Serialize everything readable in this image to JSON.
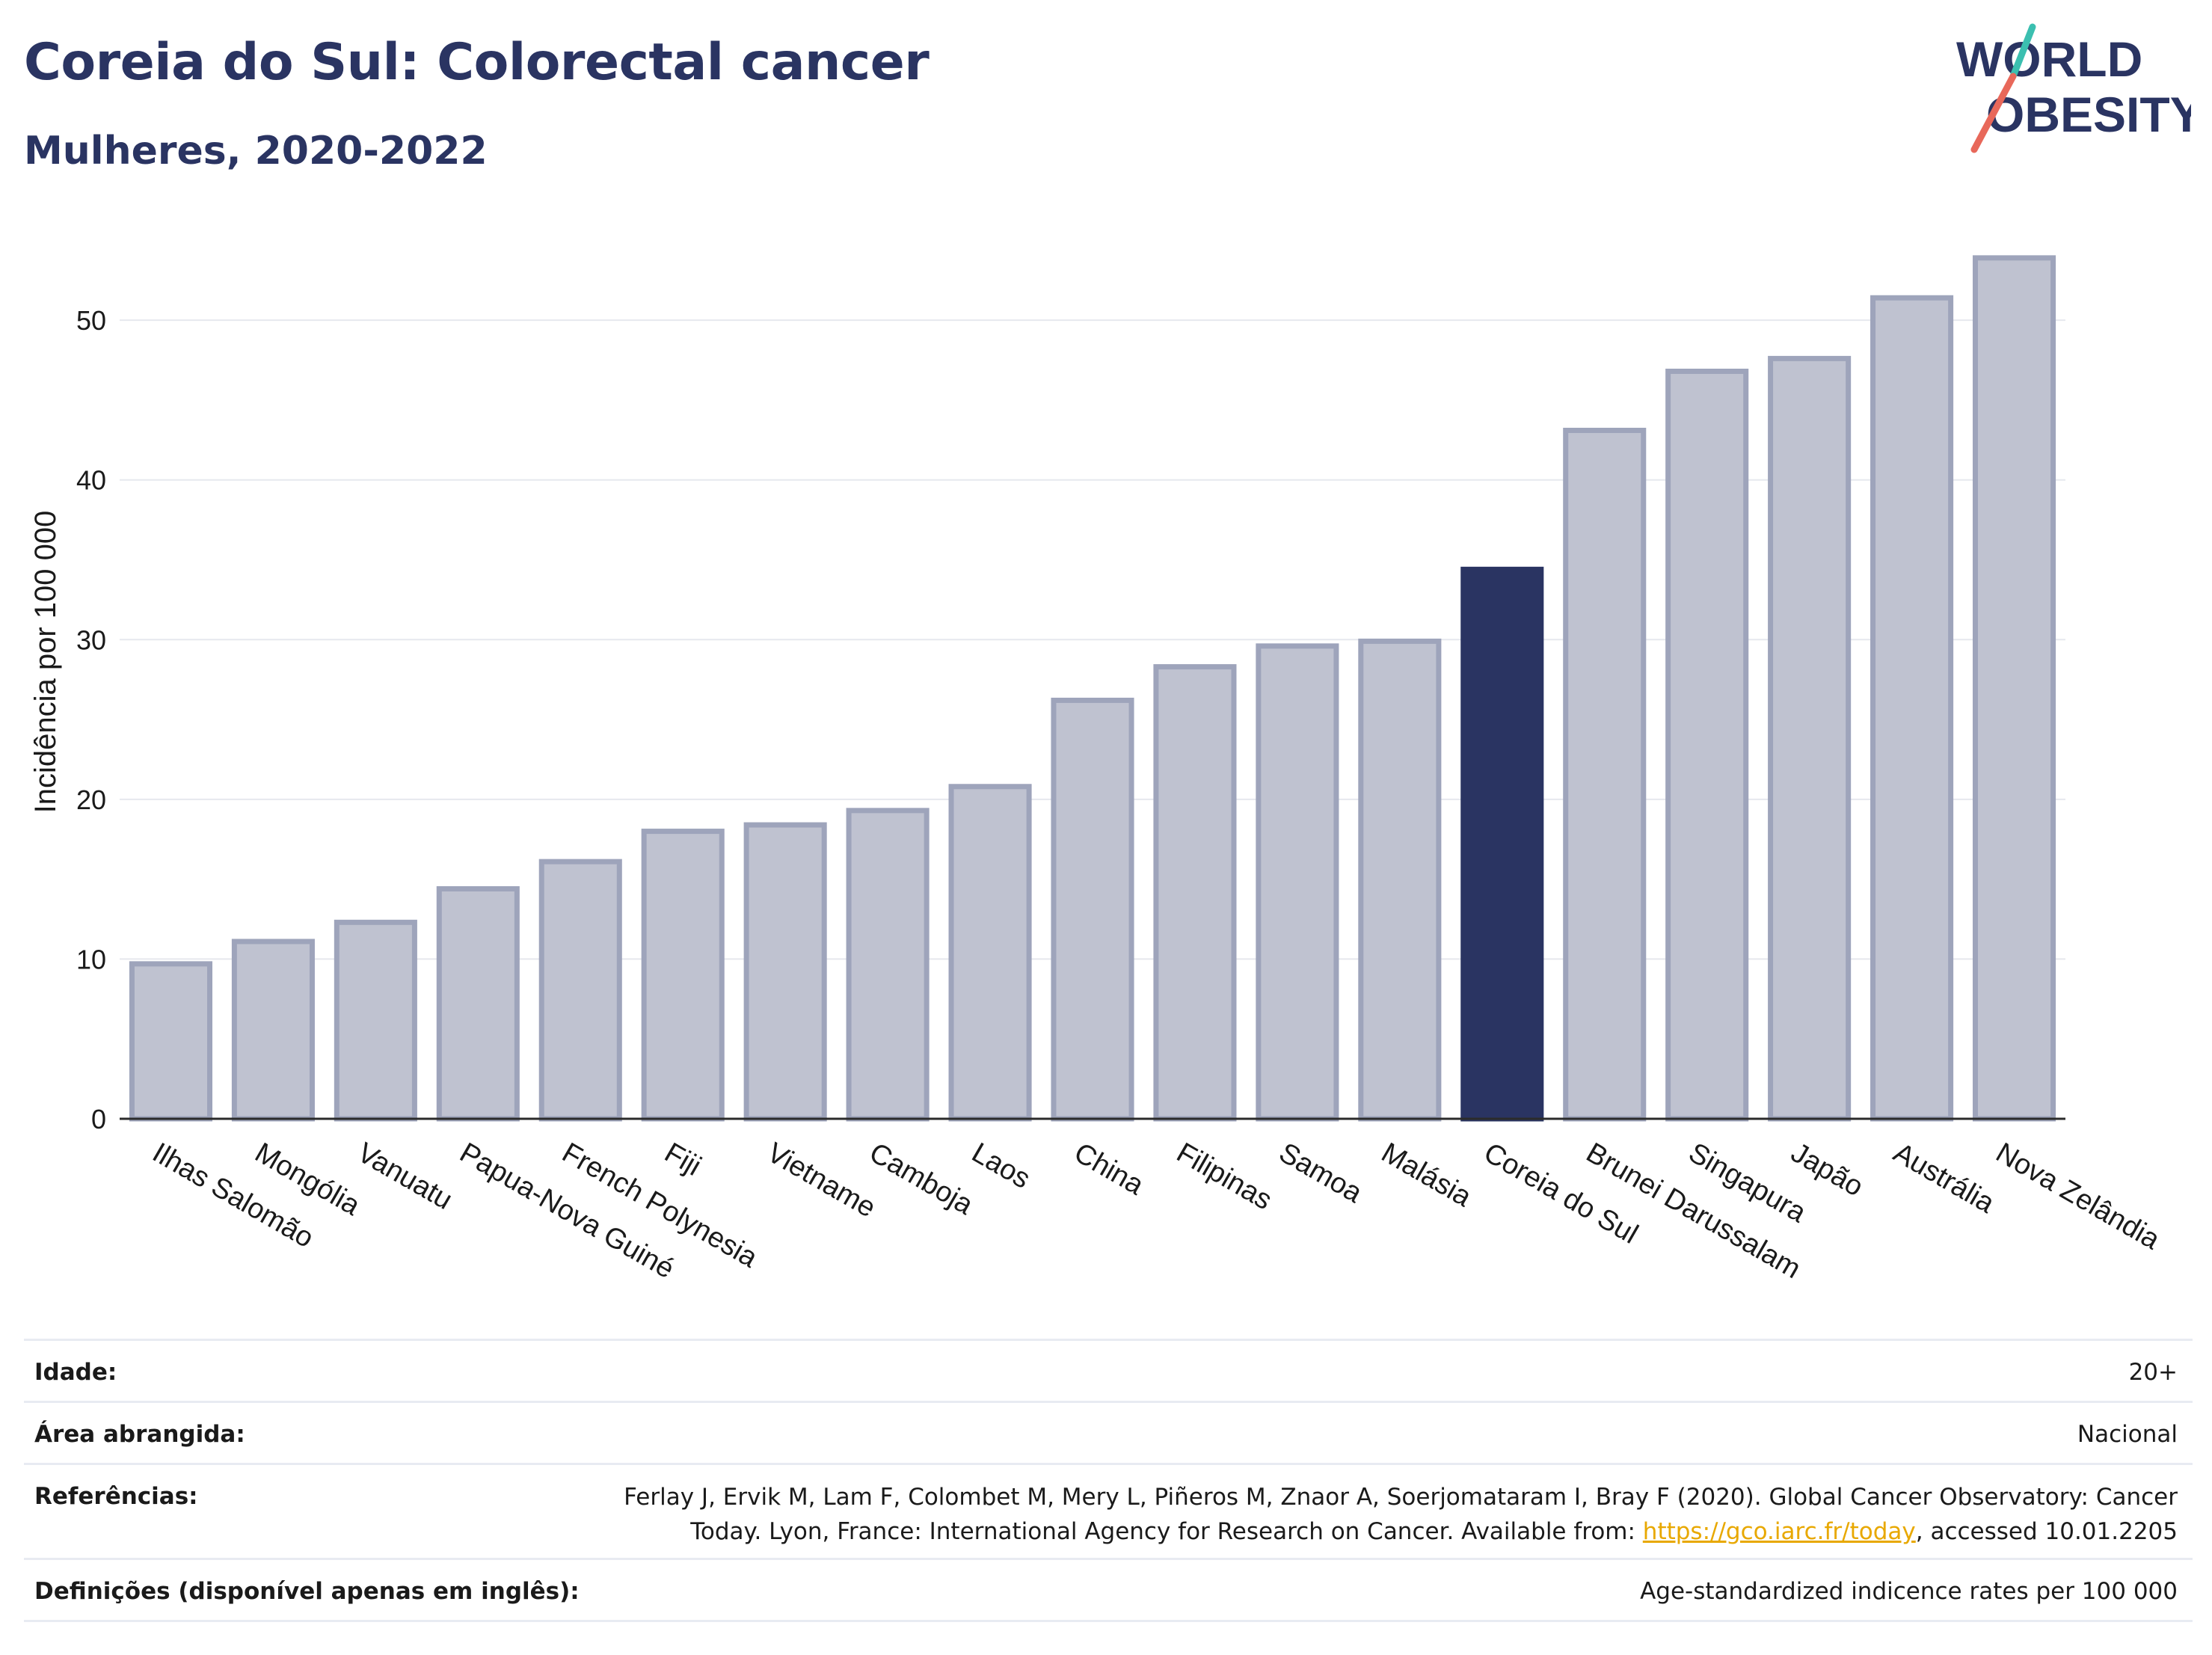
{
  "header": {
    "title": "Coreia do Sul: Colorectal cancer",
    "subtitle": "Mulheres, 2020-2022"
  },
  "logo": {
    "line1": "WORLD",
    "line2": "OBESITY",
    "colors": {
      "text": "#2a3462",
      "teal": "#3bbfb0",
      "coral": "#e8685a"
    }
  },
  "colors": {
    "bar": "#bfc2d0",
    "bar_stroke": "#9ea4bb",
    "highlight": "#2a3462",
    "axis_text": "#1a1a1a",
    "grid": "#e6e8ee"
  },
  "chart_data": {
    "type": "bar",
    "ylabel": "Incidência por 100 000",
    "ylim": [
      0,
      56
    ],
    "yticks": [
      0,
      10,
      20,
      30,
      40,
      50
    ],
    "highlight": "Coreia do Sul",
    "grid": true,
    "categories": [
      "Ilhas Salomão",
      "Mongólia",
      "Vanuatu",
      "Papua-Nova Guiné",
      "French Polynesia",
      "Fiji",
      "Vietname",
      "Camboja",
      "Laos",
      "China",
      "Filipinas",
      "Samoa",
      "Malásia",
      "Coreia do Sul",
      "Brunei Darussalam",
      "Singapura",
      "Japão",
      "Austrália",
      "Nova Zelândia"
    ],
    "values": [
      9.7,
      11.1,
      12.3,
      14.4,
      16.1,
      18.0,
      18.4,
      19.3,
      20.8,
      26.2,
      28.3,
      29.6,
      29.9,
      34.4,
      43.1,
      46.8,
      47.6,
      51.4,
      53.9
    ]
  },
  "meta": {
    "age_label": "Idade:",
    "age_value": "20+",
    "area_label": "Área abrangida:",
    "area_value": "Nacional",
    "refs_label": "Referências:",
    "refs_line1": "Ferlay J, Ervik M, Lam F, Colombet M, Mery L, Piñeros M, Znaor A, Soerjomataram I, Bray F (2020). Global Cancer Observatory: Cancer",
    "refs_line2_pre": "Today. Lyon, France: International Agency for Research on Cancer. Available from: ",
    "refs_link": "https://gco.iarc.fr/today",
    "refs_line2_post": ", accessed 10.01.2205",
    "defs_label": "Definições (disponível apenas em inglês):",
    "defs_value": "Age-standardized indicence rates per 100 000"
  }
}
